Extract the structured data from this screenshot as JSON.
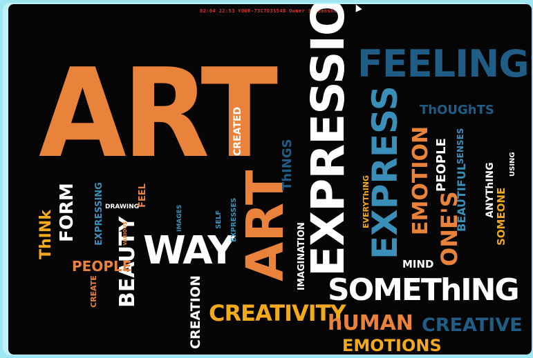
{
  "overlay": {
    "text": "02:04  22:53  YOUR-73C7D3554B  Owner  Screenshot"
  },
  "words": [
    {
      "key": "art_big",
      "text": "ART",
      "color": "#e9823a"
    },
    {
      "key": "art_small",
      "text": "ART",
      "color": "#e9823a"
    },
    {
      "key": "expression",
      "text": "EXPRESSION",
      "color": "#ffffff"
    },
    {
      "key": "feelings",
      "text": "FEELINGS",
      "color": "#1f5d86"
    },
    {
      "key": "express",
      "text": "EXPRESS",
      "color": "#3a8fb8"
    },
    {
      "key": "emotion",
      "text": "EMOTION",
      "color": "#e9823a"
    },
    {
      "key": "way",
      "text": "WAY",
      "color": "#ffffff"
    },
    {
      "key": "something",
      "text": "SOMEThING",
      "color": "#ffffff"
    },
    {
      "key": "creativity",
      "text": "CREATIVITY",
      "color": "#f2a91c"
    },
    {
      "key": "human",
      "text": "hUMAN",
      "color": "#e9823a"
    },
    {
      "key": "creative",
      "text": "CREATIVE",
      "color": "#1f5d86"
    },
    {
      "key": "emotions",
      "text": "EMOTIONS",
      "color": "#f2a91c"
    },
    {
      "key": "ones",
      "text": "ONE'S",
      "color": "#e9823a"
    },
    {
      "key": "beauty",
      "text": "BEAUTY",
      "color": "#ffffff"
    },
    {
      "key": "people",
      "text": "PEOPLE",
      "color": "#e9823a"
    },
    {
      "key": "form",
      "text": "FORM",
      "color": "#ffffff"
    },
    {
      "key": "think",
      "text": "ThINk",
      "color": "#f2a91c"
    },
    {
      "key": "thoughts",
      "text": "ThOUGhTS",
      "color": "#1f5d86"
    },
    {
      "key": "person",
      "text": "PERSON",
      "color": "#ffffff"
    },
    {
      "key": "beautiful",
      "text": "BEAUTIFUL",
      "color": "#3a8fb8"
    },
    {
      "key": "anything",
      "text": "ANYThING",
      "color": "#ffffff"
    },
    {
      "key": "someone",
      "text": "SOMEONE",
      "color": "#f2a91c"
    },
    {
      "key": "mind",
      "text": "MIND",
      "color": "#ffffff"
    },
    {
      "key": "creation",
      "text": "CREATION",
      "color": "#ffffff"
    },
    {
      "key": "imagination",
      "text": "IMAGINATION",
      "color": "#ffffff"
    },
    {
      "key": "everything",
      "text": "EVERYThING",
      "color": "#f2a91c"
    },
    {
      "key": "things",
      "text": "ThINGS",
      "color": "#1f5d86"
    },
    {
      "key": "created",
      "text": "CREATED",
      "color": "#ffffff"
    },
    {
      "key": "expressing",
      "text": "EXPRESSING",
      "color": "#3a8fb8"
    },
    {
      "key": "create",
      "text": "CREATE",
      "color": "#e9823a"
    },
    {
      "key": "senses",
      "text": "SENSES",
      "color": "#3a8fb8"
    },
    {
      "key": "using",
      "text": "USING",
      "color": "#ffffff"
    },
    {
      "key": "feel",
      "text": "FEEL",
      "color": "#e9823a"
    },
    {
      "key": "images",
      "text": "IMAGES",
      "color": "#3a8fb8"
    },
    {
      "key": "drawing",
      "text": "DRAWING",
      "color": "#ffffff"
    },
    {
      "key": "expresses",
      "text": "EXPRESSES",
      "color": "#3a8fb8"
    },
    {
      "key": "self",
      "text": "SELF",
      "color": "#3a8fb8"
    },
    {
      "key": "various",
      "text": "VARIOUS",
      "color": "#e9823a"
    }
  ]
}
